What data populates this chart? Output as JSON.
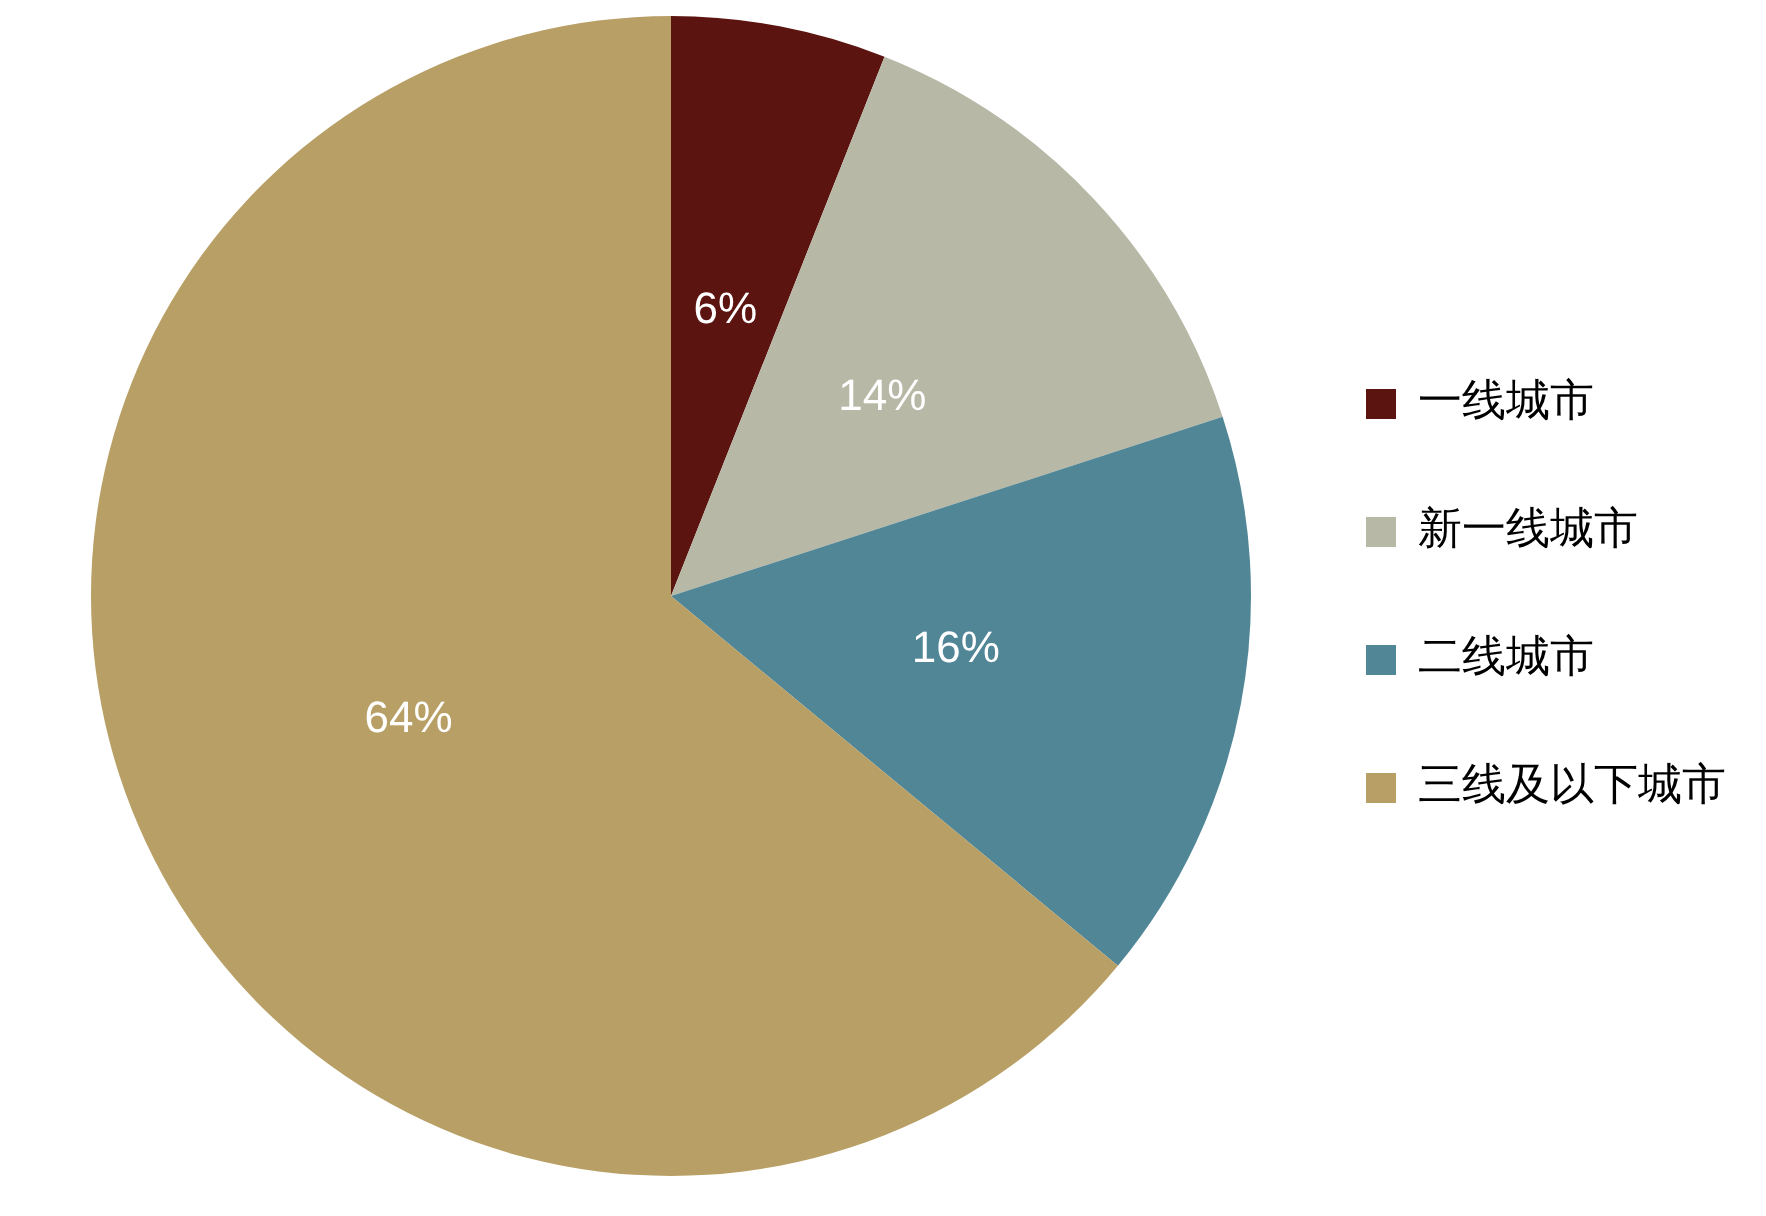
{
  "chart_data": {
    "type": "pie",
    "categories": [
      "一线城市",
      "新一线城市",
      "二线城市",
      "三线及以下城市"
    ],
    "values": [
      6,
      14,
      16,
      64
    ],
    "colors": [
      "#5c1410",
      "#b7b8a6",
      "#518696",
      "#b89f65"
    ],
    "value_labels": [
      "6%",
      "14%",
      "16%",
      "64%"
    ],
    "legend": "right"
  }
}
